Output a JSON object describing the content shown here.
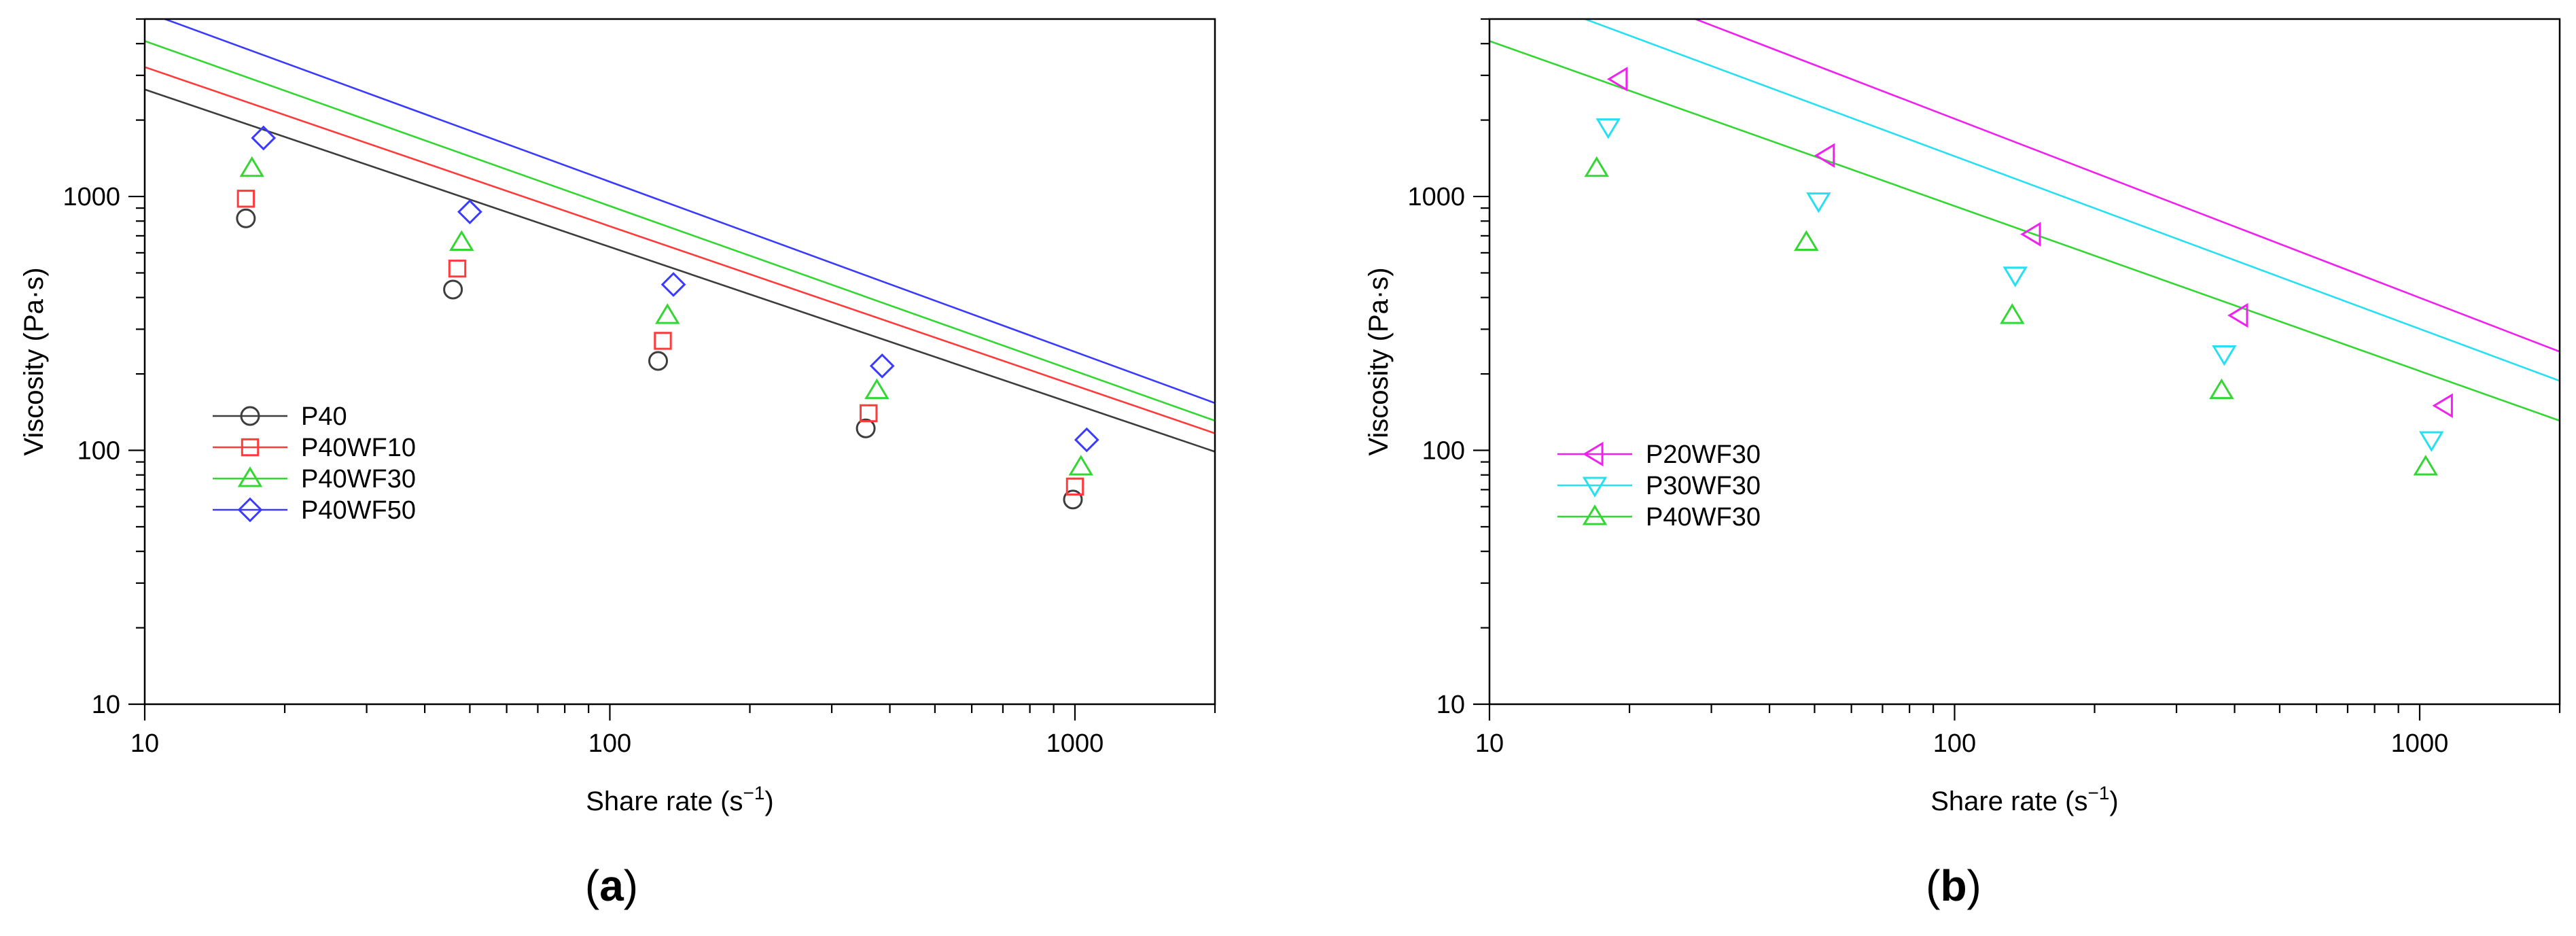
{
  "chart_data": [
    {
      "type": "line",
      "scale": "log-log",
      "panel_label": "(a)",
      "caption": {
        "open": "(",
        "letter": "a",
        "close": ")"
      },
      "xlabel": {
        "text": "Share rate (s",
        "sup": "−1",
        "tail": ")"
      },
      "ylabel": "Viscosity (Pa·s)",
      "xlim": [
        10,
        2000
      ],
      "ylim": [
        10,
        5000
      ],
      "xticks": [
        10,
        100,
        1000
      ],
      "xtick_labels": [
        "10",
        "100",
        "1000"
      ],
      "yticks": [
        10,
        100,
        1000
      ],
      "ytick_labels": [
        "10",
        "100",
        "1000"
      ],
      "legend_position": "center-left",
      "series": [
        {
          "name": "P40",
          "color": "#3d3d3d",
          "marker": "circle",
          "fit": {
            "k": 11000,
            "n": -0.62
          },
          "x": [
            16.5,
            46,
            127,
            355,
            990
          ],
          "y": [
            820,
            430,
            225,
            122,
            64
          ]
        },
        {
          "name": "P40WF10",
          "color": "#ff3b3b",
          "marker": "square",
          "fit": {
            "k": 13700,
            "n": -0.627
          },
          "x": [
            16.5,
            47,
            130,
            360,
            1000
          ],
          "y": [
            980,
            520,
            270,
            140,
            72
          ]
        },
        {
          "name": "P40WF30",
          "color": "#33d633",
          "marker": "triangle-up",
          "fit": {
            "k": 18300,
            "n": -0.65
          },
          "x": [
            17,
            48,
            133,
            375,
            1030
          ],
          "y": [
            1290,
            660,
            340,
            172,
            86
          ]
        },
        {
          "name": "P40WF50",
          "color": "#3b3bff",
          "marker": "diamond",
          "fit": {
            "k": 25000,
            "n": -0.67
          },
          "x": [
            18,
            50,
            137,
            385,
            1060
          ],
          "y": [
            1700,
            870,
            450,
            215,
            110
          ]
        }
      ]
    },
    {
      "type": "line",
      "scale": "log-log",
      "panel_label": "(b)",
      "caption": {
        "open": "(",
        "letter": "b",
        "close": ")"
      },
      "xlabel": {
        "text": "Share rate (s",
        "sup": "−1",
        "tail": ")"
      },
      "ylabel": "Viscosity (Pa·s)",
      "xlim": [
        10,
        2000
      ],
      "ylim": [
        10,
        5000
      ],
      "xticks": [
        10,
        100,
        1000
      ],
      "xtick_labels": [
        "10",
        "100",
        "1000"
      ],
      "yticks": [
        10,
        100,
        1000
      ],
      "ytick_labels": [
        "10",
        "100",
        "1000"
      ],
      "legend_position": "center-left",
      "series": [
        {
          "name": "P20WF30",
          "color": "#f020f0",
          "marker": "triangle-left",
          "fit": {
            "k": 52000,
            "n": -0.705
          },
          "x": [
            19,
            53,
            147,
            410,
            1130
          ],
          "y": [
            2900,
            1450,
            710,
            340,
            150
          ]
        },
        {
          "name": "P30WF30",
          "color": "#27dff2",
          "marker": "triangle-down",
          "fit": {
            "k": 33000,
            "n": -0.68
          },
          "x": [
            18,
            51,
            135,
            380,
            1060
          ],
          "y": [
            1880,
            960,
            490,
            240,
            110
          ]
        },
        {
          "name": "P40WF30",
          "color": "#33d633",
          "marker": "triangle-up",
          "fit": {
            "k": 18300,
            "n": -0.65
          },
          "x": [
            17,
            48,
            133,
            375,
            1030
          ],
          "y": [
            1290,
            660,
            340,
            172,
            86
          ]
        }
      ]
    }
  ]
}
